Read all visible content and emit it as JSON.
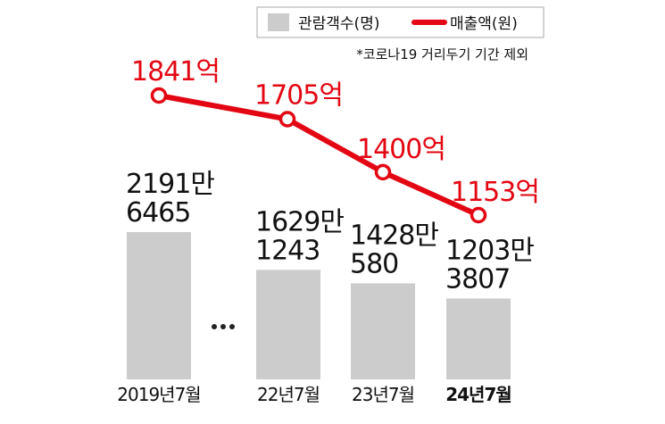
{
  "chart_data": {
    "type": "bar",
    "categories": [
      "2019년7월",
      "22년7월",
      "23년7월",
      "24년7월"
    ],
    "category_gap": "…",
    "series": [
      {
        "name": "관람객수(명)",
        "type": "bar",
        "color": "#cccccc",
        "values": [
          21916465,
          16291243,
          14280580,
          12033807
        ],
        "labels": [
          [
            "2191만",
            "6465"
          ],
          [
            "1629만",
            "1243"
          ],
          [
            "1428만",
            "580"
          ],
          [
            "1203만",
            "3807"
          ]
        ]
      },
      {
        "name": "매출액(원)",
        "type": "line",
        "color": "#e30613",
        "values": [
          1841,
          1705,
          1400,
          1153
        ],
        "labels": [
          "1841억",
          "1705억",
          "1400억",
          "1153억"
        ]
      }
    ],
    "legend": {
      "placement": "top-right",
      "bar_label": "관람객수(명)",
      "line_label": "매출액(원)"
    },
    "note": "*코로나19 거리두기 기간 제외",
    "grid": false
  }
}
